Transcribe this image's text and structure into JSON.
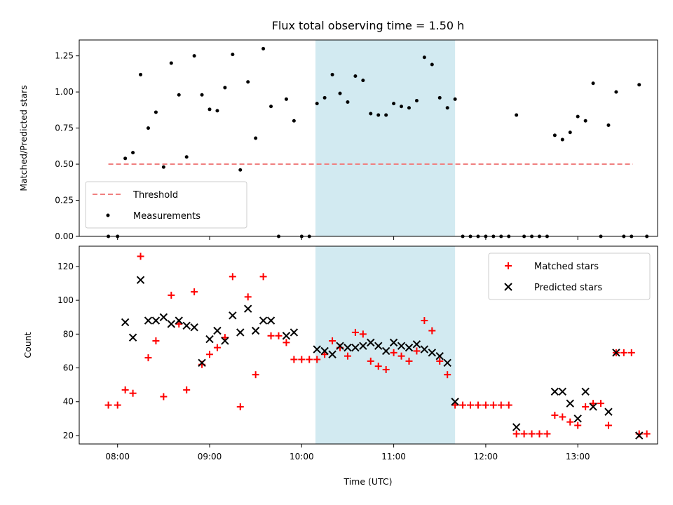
{
  "chart_data": [
    {
      "type": "scatter",
      "title": "Flux total observing time = 1.50 h",
      "xlabel": "",
      "ylabel": "Matched/Predicted stars",
      "xlim": [
        "07:35",
        "13:52"
      ],
      "ylim": [
        0,
        1.36
      ],
      "yticks": [
        "0.00",
        "0.25",
        "0.50",
        "0.75",
        "1.00",
        "1.25"
      ],
      "highlight_span": {
        "start": "10:09",
        "end": "11:40",
        "color": "#add8e6"
      },
      "threshold": {
        "name": "Threshold",
        "value": 0.5,
        "x_start": "07:54",
        "x_end": "13:36",
        "color": "#f08080"
      },
      "legend": {
        "position": "lower-left",
        "entries": [
          "Threshold",
          "Measurements"
        ]
      },
      "series": [
        {
          "name": "Measurements",
          "marker": "dot",
          "color": "#000000",
          "points": [
            [
              "07:54",
              0.0
            ],
            [
              "08:00",
              0.0
            ],
            [
              "08:05",
              0.54
            ],
            [
              "08:10",
              0.58
            ],
            [
              "08:15",
              1.12
            ],
            [
              "08:20",
              0.75
            ],
            [
              "08:25",
              0.86
            ],
            [
              "08:30",
              0.48
            ],
            [
              "08:35",
              1.2
            ],
            [
              "08:40",
              0.98
            ],
            [
              "08:45",
              0.55
            ],
            [
              "08:50",
              1.25
            ],
            [
              "08:55",
              0.98
            ],
            [
              "09:00",
              0.88
            ],
            [
              "09:05",
              0.87
            ],
            [
              "09:10",
              1.03
            ],
            [
              "09:15",
              1.26
            ],
            [
              "09:20",
              0.46
            ],
            [
              "09:25",
              1.07
            ],
            [
              "09:30",
              0.68
            ],
            [
              "09:35",
              1.3
            ],
            [
              "09:40",
              0.9
            ],
            [
              "09:45",
              0.0
            ],
            [
              "09:50",
              0.95
            ],
            [
              "09:55",
              0.8
            ],
            [
              "10:00",
              0.0
            ],
            [
              "10:05",
              0.0
            ],
            [
              "10:10",
              0.92
            ],
            [
              "10:15",
              0.96
            ],
            [
              "10:20",
              1.12
            ],
            [
              "10:25",
              0.99
            ],
            [
              "10:30",
              0.93
            ],
            [
              "10:35",
              1.11
            ],
            [
              "10:40",
              1.08
            ],
            [
              "10:45",
              0.85
            ],
            [
              "10:50",
              0.84
            ],
            [
              "10:55",
              0.84
            ],
            [
              "11:00",
              0.92
            ],
            [
              "11:05",
              0.9
            ],
            [
              "11:10",
              0.89
            ],
            [
              "11:15",
              0.94
            ],
            [
              "11:20",
              1.24
            ],
            [
              "11:25",
              1.19
            ],
            [
              "11:30",
              0.96
            ],
            [
              "11:35",
              0.89
            ],
            [
              "11:40",
              0.95
            ],
            [
              "11:45",
              0.0
            ],
            [
              "11:50",
              0.0
            ],
            [
              "11:55",
              0.0
            ],
            [
              "12:00",
              0.0
            ],
            [
              "12:05",
              0.0
            ],
            [
              "12:10",
              0.0
            ],
            [
              "12:15",
              0.0
            ],
            [
              "12:20",
              0.84
            ],
            [
              "12:25",
              0.0
            ],
            [
              "12:30",
              0.0
            ],
            [
              "12:35",
              0.0
            ],
            [
              "12:40",
              0.0
            ],
            [
              "12:45",
              0.7
            ],
            [
              "12:50",
              0.67
            ],
            [
              "12:55",
              0.72
            ],
            [
              "13:00",
              0.83
            ],
            [
              "13:05",
              0.8
            ],
            [
              "13:10",
              1.06
            ],
            [
              "13:15",
              0.0
            ],
            [
              "13:20",
              0.77
            ],
            [
              "13:25",
              1.0
            ],
            [
              "13:30",
              0.0
            ],
            [
              "13:35",
              0.0
            ],
            [
              "13:40",
              1.05
            ],
            [
              "13:45",
              0.0
            ]
          ]
        }
      ]
    },
    {
      "type": "scatter",
      "title": "",
      "xlabel": "Time (UTC)",
      "ylabel": "Count",
      "xlim": [
        "07:35",
        "13:52"
      ],
      "ylim": [
        15,
        132
      ],
      "xticks": [
        "08:00",
        "09:00",
        "10:00",
        "11:00",
        "12:00",
        "13:00"
      ],
      "yticks": [
        "20",
        "40",
        "60",
        "80",
        "100",
        "120"
      ],
      "highlight_span": {
        "start": "10:09",
        "end": "11:40",
        "color": "#add8e6"
      },
      "legend": {
        "position": "upper-right",
        "entries": [
          "Matched stars",
          "Predicted stars"
        ]
      },
      "series": [
        {
          "name": "Matched stars",
          "marker": "plus",
          "color": "#ff0000",
          "points": [
            [
              "07:54",
              38
            ],
            [
              "08:00",
              38
            ],
            [
              "08:05",
              47
            ],
            [
              "08:10",
              45
            ],
            [
              "08:15",
              126
            ],
            [
              "08:20",
              66
            ],
            [
              "08:25",
              76
            ],
            [
              "08:30",
              43
            ],
            [
              "08:35",
              103
            ],
            [
              "08:40",
              86
            ],
            [
              "08:45",
              47
            ],
            [
              "08:50",
              105
            ],
            [
              "08:55",
              62
            ],
            [
              "09:00",
              68
            ],
            [
              "09:05",
              72
            ],
            [
              "09:10",
              78
            ],
            [
              "09:15",
              114
            ],
            [
              "09:20",
              37
            ],
            [
              "09:25",
              102
            ],
            [
              "09:30",
              56
            ],
            [
              "09:35",
              114
            ],
            [
              "09:40",
              79
            ],
            [
              "09:45",
              79
            ],
            [
              "09:50",
              75
            ],
            [
              "09:55",
              65
            ],
            [
              "10:00",
              65
            ],
            [
              "10:05",
              65
            ],
            [
              "10:10",
              65
            ],
            [
              "10:15",
              68
            ],
            [
              "10:20",
              76
            ],
            [
              "10:25",
              72
            ],
            [
              "10:30",
              67
            ],
            [
              "10:35",
              81
            ],
            [
              "10:40",
              80
            ],
            [
              "10:45",
              64
            ],
            [
              "10:50",
              61
            ],
            [
              "10:55",
              59
            ],
            [
              "11:00",
              69
            ],
            [
              "11:05",
              67
            ],
            [
              "11:10",
              64
            ],
            [
              "11:15",
              70
            ],
            [
              "11:20",
              88
            ],
            [
              "11:25",
              82
            ],
            [
              "11:30",
              64
            ],
            [
              "11:35",
              56
            ],
            [
              "11:40",
              38
            ],
            [
              "11:45",
              38
            ],
            [
              "11:50",
              38
            ],
            [
              "11:55",
              38
            ],
            [
              "12:00",
              38
            ],
            [
              "12:05",
              38
            ],
            [
              "12:10",
              38
            ],
            [
              "12:15",
              38
            ],
            [
              "12:20",
              21
            ],
            [
              "12:25",
              21
            ],
            [
              "12:30",
              21
            ],
            [
              "12:35",
              21
            ],
            [
              "12:40",
              21
            ],
            [
              "12:45",
              32
            ],
            [
              "12:50",
              31
            ],
            [
              "12:55",
              28
            ],
            [
              "13:00",
              26
            ],
            [
              "13:05",
              37
            ],
            [
              "13:10",
              39
            ],
            [
              "13:15",
              39
            ],
            [
              "13:20",
              26
            ],
            [
              "13:25",
              69
            ],
            [
              "13:30",
              69
            ],
            [
              "13:35",
              69
            ],
            [
              "13:40",
              21
            ],
            [
              "13:45",
              21
            ]
          ]
        },
        {
          "name": "Predicted stars",
          "marker": "x",
          "color": "#000000",
          "points": [
            [
              "08:05",
              87
            ],
            [
              "08:10",
              78
            ],
            [
              "08:15",
              112
            ],
            [
              "08:20",
              88
            ],
            [
              "08:25",
              88
            ],
            [
              "08:30",
              90
            ],
            [
              "08:35",
              86
            ],
            [
              "08:40",
              88
            ],
            [
              "08:45",
              85
            ],
            [
              "08:50",
              84
            ],
            [
              "08:55",
              63
            ],
            [
              "09:00",
              77
            ],
            [
              "09:05",
              82
            ],
            [
              "09:10",
              76
            ],
            [
              "09:15",
              91
            ],
            [
              "09:20",
              81
            ],
            [
              "09:25",
              95
            ],
            [
              "09:30",
              82
            ],
            [
              "09:35",
              88
            ],
            [
              "09:40",
              88
            ],
            [
              "09:50",
              79
            ],
            [
              "09:55",
              81
            ],
            [
              "10:10",
              71
            ],
            [
              "10:15",
              70
            ],
            [
              "10:20",
              68
            ],
            [
              "10:25",
              73
            ],
            [
              "10:30",
              72
            ],
            [
              "10:35",
              72
            ],
            [
              "10:40",
              73
            ],
            [
              "10:45",
              75
            ],
            [
              "10:50",
              73
            ],
            [
              "10:55",
              70
            ],
            [
              "11:00",
              75
            ],
            [
              "11:05",
              73
            ],
            [
              "11:10",
              72
            ],
            [
              "11:15",
              74
            ],
            [
              "11:20",
              71
            ],
            [
              "11:25",
              69
            ],
            [
              "11:30",
              67
            ],
            [
              "11:35",
              63
            ],
            [
              "11:40",
              40
            ],
            [
              "12:20",
              25
            ],
            [
              "12:45",
              46
            ],
            [
              "12:50",
              46
            ],
            [
              "12:55",
              39
            ],
            [
              "13:00",
              30
            ],
            [
              "13:05",
              46
            ],
            [
              "13:10",
              37
            ],
            [
              "13:20",
              34
            ],
            [
              "13:25",
              69
            ],
            [
              "13:40",
              20
            ]
          ]
        }
      ]
    }
  ]
}
